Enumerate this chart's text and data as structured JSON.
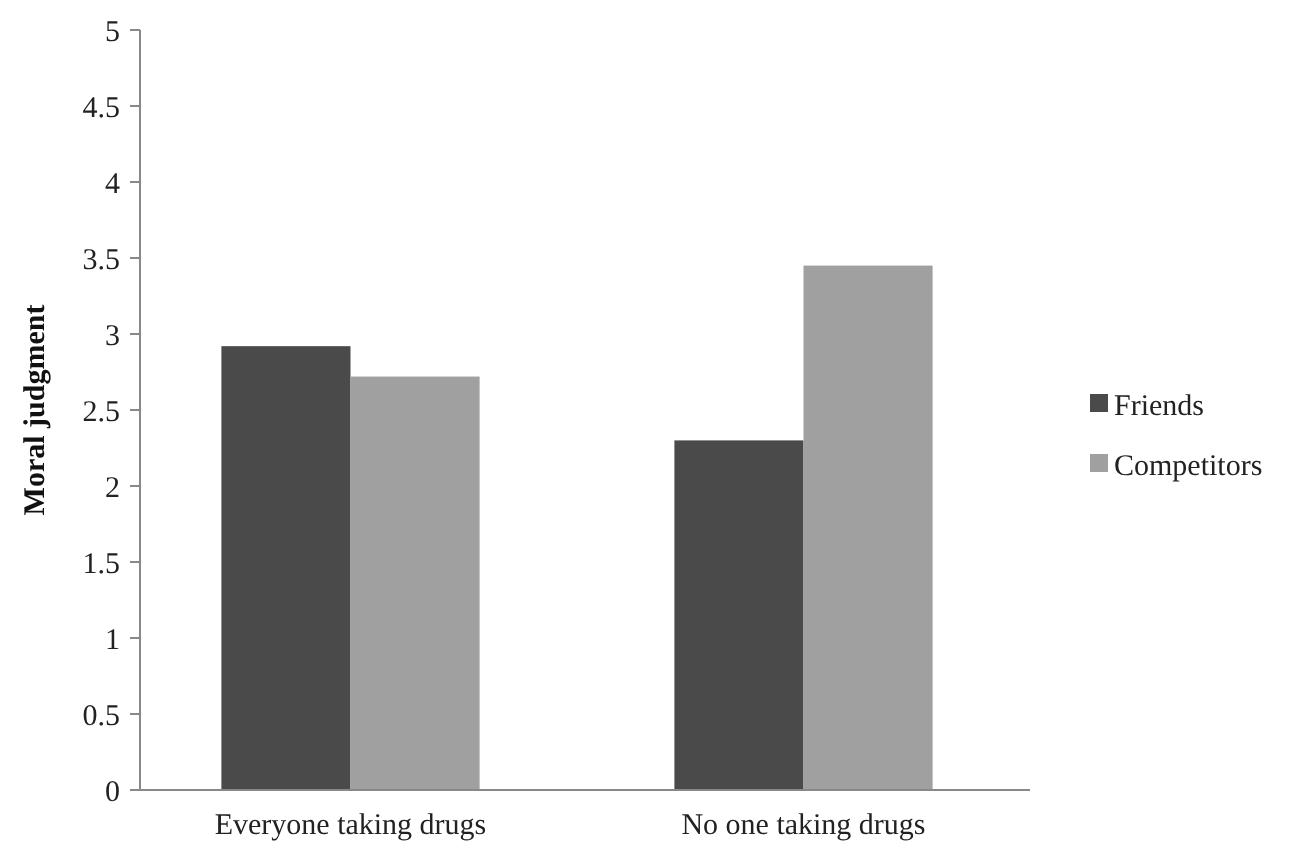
{
  "chart_data": {
    "type": "bar",
    "ylabel": "Moral judgment",
    "categories": [
      "Everyone taking drugs",
      "No one taking drugs"
    ],
    "series": [
      {
        "name": "Friends",
        "color": "#4a4a4a",
        "values": [
          2.92,
          2.3
        ]
      },
      {
        "name": "Competitors",
        "color": "#a0a0a0",
        "values": [
          2.72,
          3.45
        ]
      }
    ],
    "ylim": [
      0,
      5
    ],
    "yticks": [
      0,
      0.5,
      1,
      1.5,
      2,
      2.5,
      3,
      3.5,
      4,
      4.5,
      5
    ],
    "grid": false,
    "legend": "right"
  }
}
